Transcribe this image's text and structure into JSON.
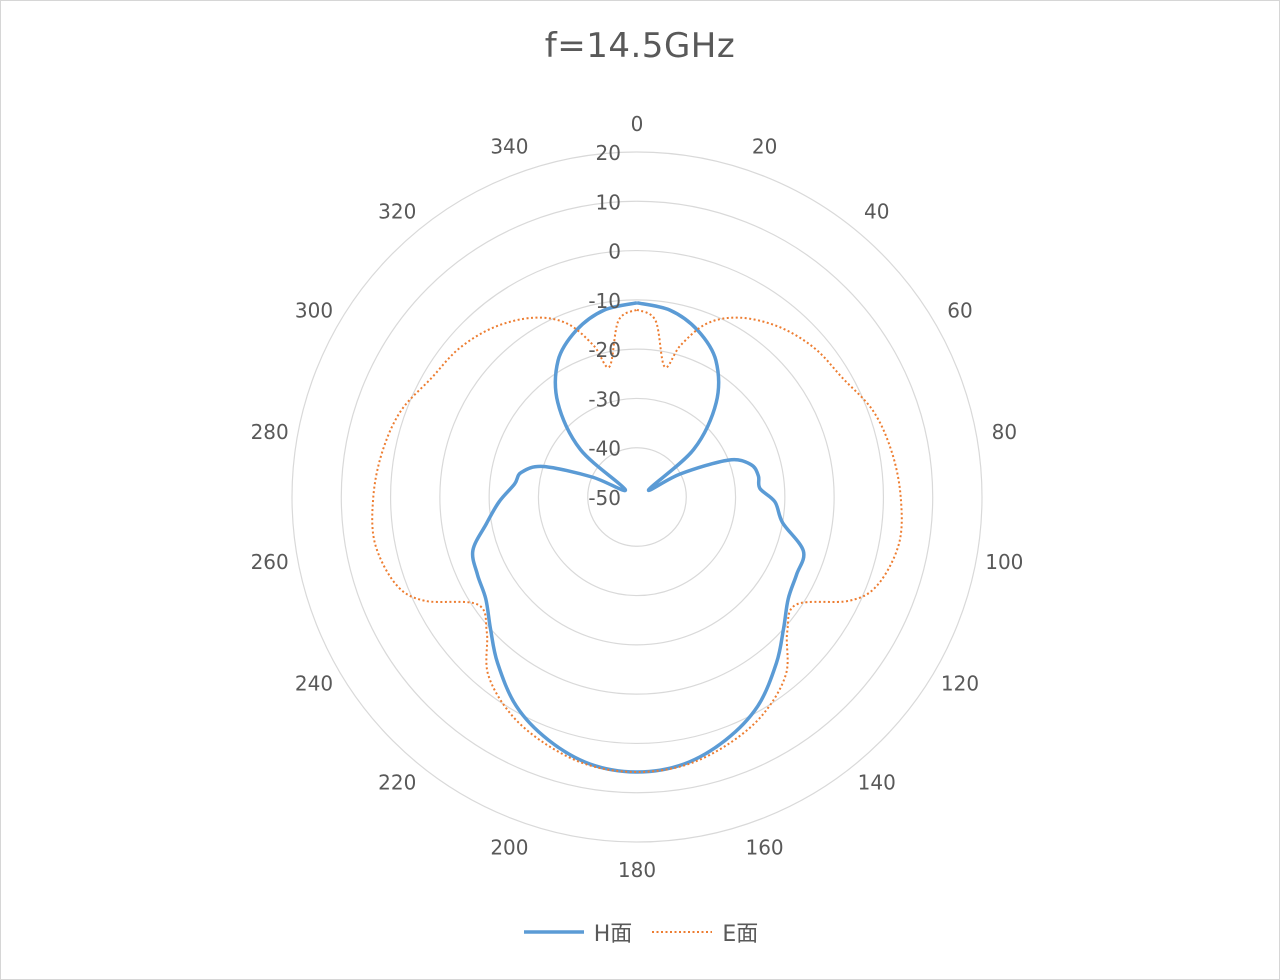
{
  "chart_data": {
    "type": "radar",
    "title": "f=14.5GHz",
    "angle_ticks": [
      "0",
      "20",
      "40",
      "60",
      "80",
      "100",
      "120",
      "140",
      "160",
      "180",
      "200",
      "220",
      "240",
      "260",
      "280",
      "300",
      "320",
      "340"
    ],
    "radial_ticks": [
      "-50",
      "-40",
      "-30",
      "-20",
      "-10",
      "0",
      "10",
      "20"
    ],
    "rlim": [
      -50,
      20
    ],
    "grid": true,
    "legend_position": "bottom",
    "series": [
      {
        "name": "H面",
        "color": "#5b9bd5",
        "line_style": "solid",
        "points": [
          [
            0,
            -10.6
          ],
          [
            10,
            -11.5
          ],
          [
            20,
            -14
          ],
          [
            30,
            -18
          ],
          [
            40,
            -25
          ],
          [
            50,
            -35
          ],
          [
            58,
            -47.2
          ],
          [
            62,
            -40
          ],
          [
            68,
            -30
          ],
          [
            74,
            -26
          ],
          [
            80,
            -25
          ],
          [
            86,
            -25
          ],
          [
            92,
            -22
          ],
          [
            100,
            -20
          ],
          [
            108,
            -14.5
          ],
          [
            116,
            -14
          ],
          [
            124,
            -13
          ],
          [
            132,
            -10
          ],
          [
            140,
            -6
          ],
          [
            150,
            -1
          ],
          [
            160,
            2.5
          ],
          [
            170,
            5
          ],
          [
            180,
            5.8
          ],
          [
            190,
            5
          ],
          [
            200,
            2.5
          ],
          [
            210,
            -1
          ],
          [
            220,
            -6
          ],
          [
            228,
            -10
          ],
          [
            236,
            -13
          ],
          [
            244,
            -14
          ],
          [
            252,
            -15
          ],
          [
            260,
            -19
          ],
          [
            268,
            -22
          ],
          [
            276,
            -25
          ],
          [
            282,
            -26
          ],
          [
            288,
            -30
          ],
          [
            294,
            -40
          ],
          [
            302,
            -47.2
          ],
          [
            310,
            -35
          ],
          [
            320,
            -25
          ],
          [
            330,
            -18
          ],
          [
            340,
            -14
          ],
          [
            350,
            -11.5
          ],
          [
            360,
            -10.6
          ]
        ]
      },
      {
        "name": "E面",
        "color": "#ed7d31",
        "line_style": "dotted",
        "points": [
          [
            0,
            -12
          ],
          [
            6,
            -14
          ],
          [
            12,
            -23
          ],
          [
            16,
            -18
          ],
          [
            22,
            -12
          ],
          [
            30,
            -8
          ],
          [
            40,
            -5
          ],
          [
            50,
            -3
          ],
          [
            60,
            -1.8
          ],
          [
            70,
            1
          ],
          [
            80,
            2.5
          ],
          [
            90,
            3.5
          ],
          [
            100,
            4
          ],
          [
            110,
            2
          ],
          [
            116,
            -2
          ],
          [
            124,
            -11
          ],
          [
            132,
            -9
          ],
          [
            140,
            -3
          ],
          [
            150,
            1
          ],
          [
            160,
            3.5
          ],
          [
            170,
            5.3
          ],
          [
            180,
            5.8
          ],
          [
            190,
            5.3
          ],
          [
            200,
            3.5
          ],
          [
            210,
            1
          ],
          [
            220,
            -3
          ],
          [
            228,
            -9
          ],
          [
            236,
            -11
          ],
          [
            244,
            -2
          ],
          [
            250,
            2
          ],
          [
            260,
            4
          ],
          [
            270,
            3.5
          ],
          [
            280,
            2.5
          ],
          [
            290,
            1
          ],
          [
            300,
            -1.8
          ],
          [
            310,
            -3
          ],
          [
            320,
            -5
          ],
          [
            330,
            -8
          ],
          [
            338,
            -12
          ],
          [
            344,
            -18
          ],
          [
            348,
            -23
          ],
          [
            354,
            -14
          ],
          [
            360,
            -12
          ]
        ]
      }
    ]
  }
}
